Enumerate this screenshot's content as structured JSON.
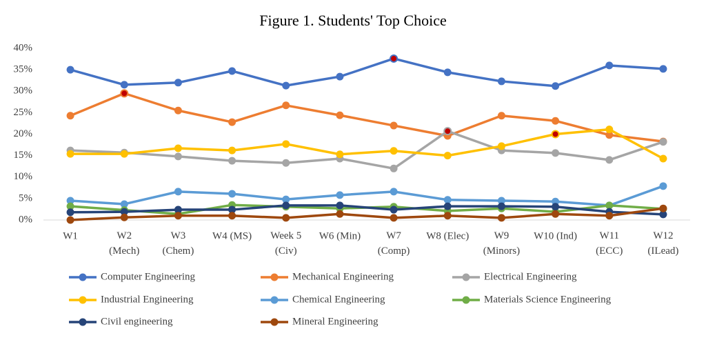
{
  "chart_data": {
    "type": "line",
    "title": "Figure 1. Students' Top Choice",
    "categories": [
      "W1",
      "W2 (Mech)",
      "W3 (Chem)",
      "W4 (MS)",
      "Week 5 (Civ)",
      "W6 (Min)",
      "W7 (Comp)",
      "W8 (Elec)",
      "W9 (Minors)",
      "W10 (Ind)",
      "W11 (ECC)",
      "W12 (ILead)"
    ],
    "ylim": [
      0,
      40
    ],
    "yticks": [
      {
        "value": 0,
        "label": "0%"
      },
      {
        "value": 5,
        "label": "5%"
      },
      {
        "value": 10,
        "label": "10%"
      },
      {
        "value": 15,
        "label": "15%"
      },
      {
        "value": 20,
        "label": "20%"
      },
      {
        "value": 25,
        "label": "25%"
      },
      {
        "value": 30,
        "label": "30%"
      },
      {
        "value": 35,
        "label": "35%"
      },
      {
        "value": 40,
        "label": "40%"
      }
    ],
    "grid": false,
    "highlight_color": "#c00000",
    "series": [
      {
        "name": "Computer Engineering",
        "color": "#4472c4",
        "highlight": 6,
        "values": [
          35,
          31.5,
          32,
          34.7,
          31.3,
          33.4,
          37.6,
          34.4,
          32.3,
          31.2,
          36,
          35.2
        ]
      },
      {
        "name": "Mechanical Engineering",
        "color": "#ed7d31",
        "highlight": 1,
        "values": [
          24.3,
          29.5,
          25.5,
          22.8,
          26.7,
          24.4,
          22,
          19.6,
          24.3,
          23.1,
          19.8,
          18.3
        ]
      },
      {
        "name": "Electrical Engineering",
        "color": "#a5a5a5",
        "highlight": 7,
        "values": [
          16.2,
          15.7,
          14.8,
          13.8,
          13.3,
          14.3,
          12,
          20.7,
          16.2,
          15.6,
          14,
          18.2
        ]
      },
      {
        "name": "Industrial Engineering",
        "color": "#ffc000",
        "highlight": 9,
        "values": [
          15.4,
          15.4,
          16.7,
          16.2,
          17.7,
          15.3,
          16.1,
          15,
          17.2,
          20,
          21.1,
          14.3
        ]
      },
      {
        "name": "Chemical Engineering",
        "color": "#5b9bd5",
        "values": [
          4.5,
          3.7,
          6.6,
          6.1,
          4.8,
          5.8,
          6.6,
          4.7,
          4.5,
          4.3,
          3.4,
          7.9
        ]
      },
      {
        "name": "Materials Science Engineering",
        "color": "#70ad47",
        "values": [
          3.2,
          2.3,
          1.4,
          3.5,
          3.1,
          2.7,
          3.1,
          2.1,
          2.7,
          1.9,
          3.4,
          2.6
        ]
      },
      {
        "name": "Civil engineering",
        "color": "#264478",
        "values": [
          1.8,
          1.9,
          2.4,
          2.4,
          3.4,
          3.4,
          2.4,
          3.2,
          3.2,
          3.1,
          1.9,
          1.3
        ]
      },
      {
        "name": "Mineral Engineering",
        "color": "#9e480e",
        "values": [
          0,
          0.6,
          1,
          1,
          0.5,
          1.4,
          0.5,
          1,
          0.5,
          1.4,
          1,
          2.7
        ]
      }
    ]
  }
}
